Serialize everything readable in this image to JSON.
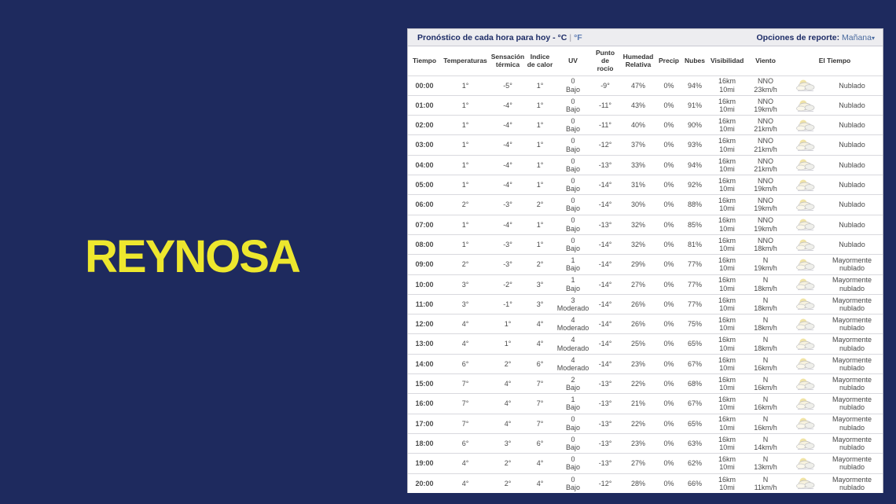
{
  "page": {
    "bg_color": "#1E2A5E",
    "accent_yellow": "#EDE72E",
    "city_label": "REYNOSA"
  },
  "panel": {
    "title": "Pronóstico de cada hora para hoy - °C",
    "unit_separator": "|",
    "unit_alt_label": "°F",
    "report_options_label": "Opciones de reporte:",
    "report_options_value": "Mañana",
    "caret_icon": "▾"
  },
  "table": {
    "columns": [
      "Tiempo",
      "Temperaturas",
      "Sensación térmica",
      "Indice de calor",
      "UV",
      "Punto de rocío",
      "Humedad Relativa",
      "Precip",
      "Nubes",
      "Visibilidad",
      "Viento",
      "El Tiempo"
    ],
    "weather_icon_name": "mostly-cloudy-icon",
    "rows": [
      {
        "time": "00:00",
        "temp": "1°",
        "feels": "-5°",
        "heat": "1°",
        "uv_value": "0",
        "uv_label": "Bajo",
        "dew": "-9°",
        "humidity": "47%",
        "precip": "0%",
        "clouds": "94%",
        "vis_km": "16km",
        "vis_mi": "10mi",
        "wind_dir": "NNO",
        "wind_speed": "23km/h",
        "condition": "Nublado"
      },
      {
        "time": "01:00",
        "temp": "1°",
        "feels": "-4°",
        "heat": "1°",
        "uv_value": "0",
        "uv_label": "Bajo",
        "dew": "-11°",
        "humidity": "43%",
        "precip": "0%",
        "clouds": "91%",
        "vis_km": "16km",
        "vis_mi": "10mi",
        "wind_dir": "NNO",
        "wind_speed": "19km/h",
        "condition": "Nublado"
      },
      {
        "time": "02:00",
        "temp": "1°",
        "feels": "-4°",
        "heat": "1°",
        "uv_value": "0",
        "uv_label": "Bajo",
        "dew": "-11°",
        "humidity": "40%",
        "precip": "0%",
        "clouds": "90%",
        "vis_km": "16km",
        "vis_mi": "10mi",
        "wind_dir": "NNO",
        "wind_speed": "21km/h",
        "condition": "Nublado"
      },
      {
        "time": "03:00",
        "temp": "1°",
        "feels": "-4°",
        "heat": "1°",
        "uv_value": "0",
        "uv_label": "Bajo",
        "dew": "-12°",
        "humidity": "37%",
        "precip": "0%",
        "clouds": "93%",
        "vis_km": "16km",
        "vis_mi": "10mi",
        "wind_dir": "NNO",
        "wind_speed": "21km/h",
        "condition": "Nublado"
      },
      {
        "time": "04:00",
        "temp": "1°",
        "feels": "-4°",
        "heat": "1°",
        "uv_value": "0",
        "uv_label": "Bajo",
        "dew": "-13°",
        "humidity": "33%",
        "precip": "0%",
        "clouds": "94%",
        "vis_km": "16km",
        "vis_mi": "10mi",
        "wind_dir": "NNO",
        "wind_speed": "21km/h",
        "condition": "Nublado"
      },
      {
        "time": "05:00",
        "temp": "1°",
        "feels": "-4°",
        "heat": "1°",
        "uv_value": "0",
        "uv_label": "Bajo",
        "dew": "-14°",
        "humidity": "31%",
        "precip": "0%",
        "clouds": "92%",
        "vis_km": "16km",
        "vis_mi": "10mi",
        "wind_dir": "NNO",
        "wind_speed": "19km/h",
        "condition": "Nublado"
      },
      {
        "time": "06:00",
        "temp": "2°",
        "feels": "-3°",
        "heat": "2°",
        "uv_value": "0",
        "uv_label": "Bajo",
        "dew": "-14°",
        "humidity": "30%",
        "precip": "0%",
        "clouds": "88%",
        "vis_km": "16km",
        "vis_mi": "10mi",
        "wind_dir": "NNO",
        "wind_speed": "19km/h",
        "condition": "Nublado"
      },
      {
        "time": "07:00",
        "temp": "1°",
        "feels": "-4°",
        "heat": "1°",
        "uv_value": "0",
        "uv_label": "Bajo",
        "dew": "-13°",
        "humidity": "32%",
        "precip": "0%",
        "clouds": "85%",
        "vis_km": "16km",
        "vis_mi": "10mi",
        "wind_dir": "NNO",
        "wind_speed": "19km/h",
        "condition": "Nublado"
      },
      {
        "time": "08:00",
        "temp": "1°",
        "feels": "-3°",
        "heat": "1°",
        "uv_value": "0",
        "uv_label": "Bajo",
        "dew": "-14°",
        "humidity": "32%",
        "precip": "0%",
        "clouds": "81%",
        "vis_km": "16km",
        "vis_mi": "10mi",
        "wind_dir": "NNO",
        "wind_speed": "18km/h",
        "condition": "Nublado"
      },
      {
        "time": "09:00",
        "temp": "2°",
        "feels": "-3°",
        "heat": "2°",
        "uv_value": "1",
        "uv_label": "Bajo",
        "dew": "-14°",
        "humidity": "29%",
        "precip": "0%",
        "clouds": "77%",
        "vis_km": "16km",
        "vis_mi": "10mi",
        "wind_dir": "N",
        "wind_speed": "19km/h",
        "condition": "Mayormente nublado"
      },
      {
        "time": "10:00",
        "temp": "3°",
        "feels": "-2°",
        "heat": "3°",
        "uv_value": "1",
        "uv_label": "Bajo",
        "dew": "-14°",
        "humidity": "27%",
        "precip": "0%",
        "clouds": "77%",
        "vis_km": "16km",
        "vis_mi": "10mi",
        "wind_dir": "N",
        "wind_speed": "18km/h",
        "condition": "Mayormente nublado"
      },
      {
        "time": "11:00",
        "temp": "3°",
        "feels": "-1°",
        "heat": "3°",
        "uv_value": "3",
        "uv_label": "Moderado",
        "dew": "-14°",
        "humidity": "26%",
        "precip": "0%",
        "clouds": "77%",
        "vis_km": "16km",
        "vis_mi": "10mi",
        "wind_dir": "N",
        "wind_speed": "18km/h",
        "condition": "Mayormente nublado"
      },
      {
        "time": "12:00",
        "temp": "4°",
        "feels": "1°",
        "heat": "4°",
        "uv_value": "4",
        "uv_label": "Moderado",
        "dew": "-14°",
        "humidity": "26%",
        "precip": "0%",
        "clouds": "75%",
        "vis_km": "16km",
        "vis_mi": "10mi",
        "wind_dir": "N",
        "wind_speed": "18km/h",
        "condition": "Mayormente nublado"
      },
      {
        "time": "13:00",
        "temp": "4°",
        "feels": "1°",
        "heat": "4°",
        "uv_value": "4",
        "uv_label": "Moderado",
        "dew": "-14°",
        "humidity": "25%",
        "precip": "0%",
        "clouds": "65%",
        "vis_km": "16km",
        "vis_mi": "10mi",
        "wind_dir": "N",
        "wind_speed": "18km/h",
        "condition": "Mayormente nublado"
      },
      {
        "time": "14:00",
        "temp": "6°",
        "feels": "2°",
        "heat": "6°",
        "uv_value": "4",
        "uv_label": "Moderado",
        "dew": "-14°",
        "humidity": "23%",
        "precip": "0%",
        "clouds": "67%",
        "vis_km": "16km",
        "vis_mi": "10mi",
        "wind_dir": "N",
        "wind_speed": "16km/h",
        "condition": "Mayormente nublado"
      },
      {
        "time": "15:00",
        "temp": "7°",
        "feels": "4°",
        "heat": "7°",
        "uv_value": "2",
        "uv_label": "Bajo",
        "dew": "-13°",
        "humidity": "22%",
        "precip": "0%",
        "clouds": "68%",
        "vis_km": "16km",
        "vis_mi": "10mi",
        "wind_dir": "N",
        "wind_speed": "16km/h",
        "condition": "Mayormente nublado"
      },
      {
        "time": "16:00",
        "temp": "7°",
        "feels": "4°",
        "heat": "7°",
        "uv_value": "1",
        "uv_label": "Bajo",
        "dew": "-13°",
        "humidity": "21%",
        "precip": "0%",
        "clouds": "67%",
        "vis_km": "16km",
        "vis_mi": "10mi",
        "wind_dir": "N",
        "wind_speed": "16km/h",
        "condition": "Mayormente nublado"
      },
      {
        "time": "17:00",
        "temp": "7°",
        "feels": "4°",
        "heat": "7°",
        "uv_value": "0",
        "uv_label": "Bajo",
        "dew": "-13°",
        "humidity": "22%",
        "precip": "0%",
        "clouds": "65%",
        "vis_km": "16km",
        "vis_mi": "10mi",
        "wind_dir": "N",
        "wind_speed": "16km/h",
        "condition": "Mayormente nublado"
      },
      {
        "time": "18:00",
        "temp": "6°",
        "feels": "3°",
        "heat": "6°",
        "uv_value": "0",
        "uv_label": "Bajo",
        "dew": "-13°",
        "humidity": "23%",
        "precip": "0%",
        "clouds": "63%",
        "vis_km": "16km",
        "vis_mi": "10mi",
        "wind_dir": "N",
        "wind_speed": "14km/h",
        "condition": "Mayormente nublado"
      },
      {
        "time": "19:00",
        "temp": "4°",
        "feels": "2°",
        "heat": "4°",
        "uv_value": "0",
        "uv_label": "Bajo",
        "dew": "-13°",
        "humidity": "27%",
        "precip": "0%",
        "clouds": "62%",
        "vis_km": "16km",
        "vis_mi": "10mi",
        "wind_dir": "N",
        "wind_speed": "13km/h",
        "condition": "Mayormente nublado"
      },
      {
        "time": "20:00",
        "temp": "4°",
        "feels": "2°",
        "heat": "4°",
        "uv_value": "0",
        "uv_label": "Bajo",
        "dew": "-12°",
        "humidity": "28%",
        "precip": "0%",
        "clouds": "66%",
        "vis_km": "16km",
        "vis_mi": "10mi",
        "wind_dir": "N",
        "wind_speed": "11km/h",
        "condition": "Mayormente nublado"
      }
    ]
  }
}
